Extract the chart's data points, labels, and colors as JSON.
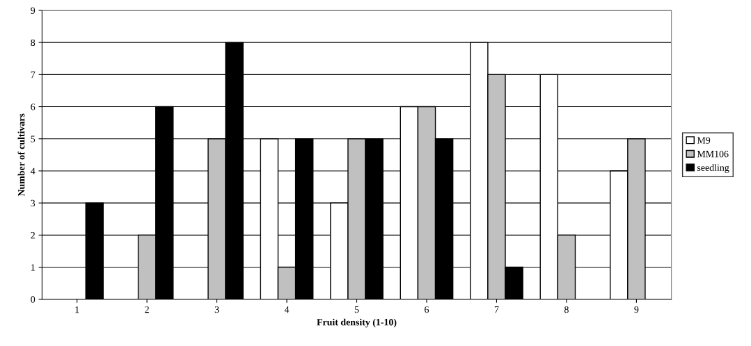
{
  "chart_data": {
    "type": "bar",
    "xlabel": "Fruit density (1-10)",
    "ylabel": "Number of cultivars",
    "categories": [
      "1",
      "2",
      "3",
      "4",
      "5",
      "6",
      "7",
      "8",
      "9"
    ],
    "series": [
      {
        "name": "M9",
        "color": "#ffffff",
        "values": [
          0,
          0,
          0,
          5,
          3,
          6,
          8,
          7,
          4
        ]
      },
      {
        "name": "MM106",
        "color": "#c0c0c0",
        "values": [
          0,
          2,
          5,
          1,
          5,
          6,
          7,
          2,
          5
        ]
      },
      {
        "name": "seedling",
        "color": "#000000",
        "values": [
          3,
          6,
          8,
          5,
          5,
          5,
          1,
          0,
          0
        ]
      }
    ],
    "ylim": [
      0,
      9
    ],
    "yticks": [
      0,
      1,
      2,
      3,
      4,
      5,
      6,
      7,
      8,
      9
    ],
    "grid": "y",
    "legend": "right"
  }
}
